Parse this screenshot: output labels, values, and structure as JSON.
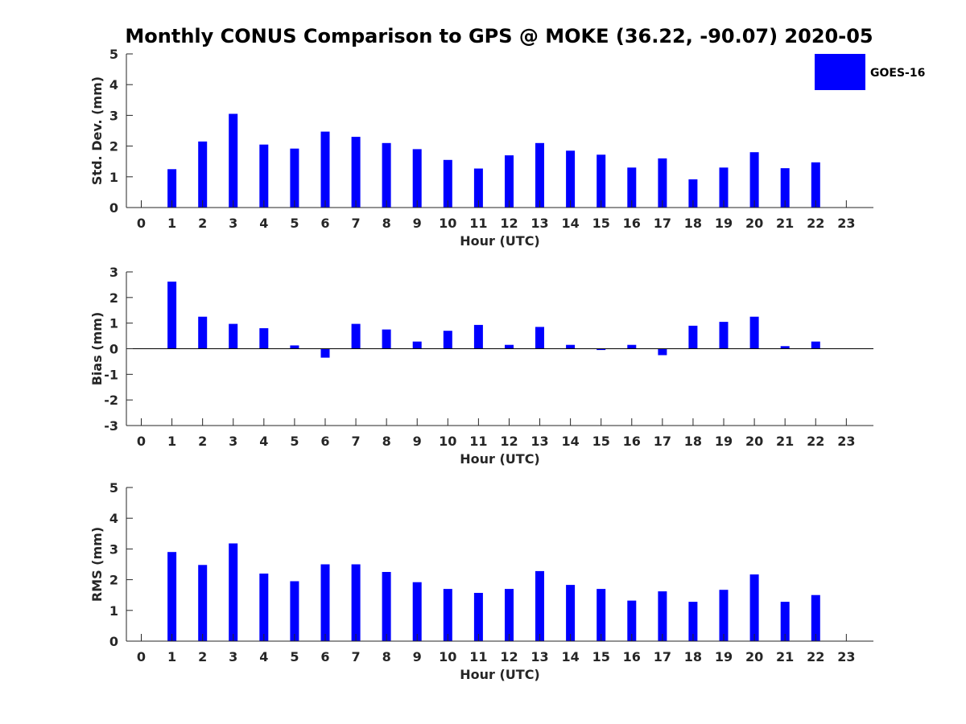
{
  "title": "Monthly CONUS Comparison to GPS @ MOKE (36.22, -90.07) 2020-05",
  "legend": {
    "label": "GOES-16",
    "position": "top-right"
  },
  "colors": {
    "bar": "#0000ff",
    "axis": "#262626"
  },
  "chart_data": [
    {
      "type": "bar",
      "ylabel": "Std. Dev. (mm)",
      "xlabel": "Hour (UTC)",
      "ylim": [
        0,
        5
      ],
      "yticks": [
        0,
        1,
        2,
        3,
        4,
        5
      ],
      "x": [
        0,
        1,
        2,
        3,
        4,
        5,
        6,
        7,
        8,
        9,
        10,
        11,
        12,
        13,
        14,
        15,
        16,
        17,
        18,
        19,
        20,
        21,
        22,
        23
      ],
      "series": [
        {
          "name": "GOES-16",
          "values": [
            null,
            1.25,
            2.15,
            3.05,
            2.05,
            1.92,
            2.47,
            2.3,
            2.1,
            1.9,
            1.55,
            1.27,
            1.7,
            2.1,
            1.85,
            1.72,
            1.3,
            1.6,
            0.92,
            1.3,
            1.8,
            1.28,
            1.47,
            null
          ]
        }
      ]
    },
    {
      "type": "bar",
      "ylabel": "Bias (mm)",
      "xlabel": "Hour (UTC)",
      "ylim": [
        -3,
        3
      ],
      "yticks": [
        -3,
        -2,
        -1,
        0,
        1,
        2,
        3
      ],
      "x": [
        0,
        1,
        2,
        3,
        4,
        5,
        6,
        7,
        8,
        9,
        10,
        11,
        12,
        13,
        14,
        15,
        16,
        17,
        18,
        19,
        20,
        21,
        22,
        23
      ],
      "series": [
        {
          "name": "GOES-16",
          "values": [
            null,
            2.62,
            1.25,
            0.97,
            0.8,
            0.13,
            -0.35,
            0.97,
            0.75,
            0.28,
            0.7,
            0.93,
            0.15,
            0.85,
            0.15,
            -0.05,
            0.15,
            -0.25,
            0.9,
            1.05,
            1.25,
            0.1,
            0.28,
            null
          ]
        }
      ]
    },
    {
      "type": "bar",
      "ylabel": "RMS (mm)",
      "xlabel": "Hour (UTC)",
      "ylim": [
        0,
        5
      ],
      "yticks": [
        0,
        1,
        2,
        3,
        4,
        5
      ],
      "x": [
        0,
        1,
        2,
        3,
        4,
        5,
        6,
        7,
        8,
        9,
        10,
        11,
        12,
        13,
        14,
        15,
        16,
        17,
        18,
        19,
        20,
        21,
        22,
        23
      ],
      "series": [
        {
          "name": "GOES-16",
          "values": [
            null,
            2.9,
            2.48,
            3.18,
            2.2,
            1.95,
            2.5,
            2.5,
            2.25,
            1.92,
            1.7,
            1.57,
            1.7,
            2.28,
            1.83,
            1.7,
            1.32,
            1.62,
            1.28,
            1.67,
            2.17,
            1.28,
            1.5,
            null
          ]
        }
      ]
    }
  ]
}
